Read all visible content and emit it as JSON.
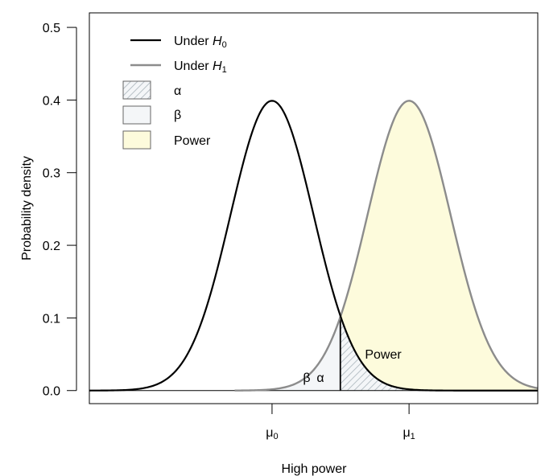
{
  "chart_data": {
    "type": "area",
    "title": "",
    "xlabel": "High power",
    "ylabel": "Probability density",
    "xlim": [
      -4.4,
      6.4
    ],
    "ylim": [
      -0.018,
      0.52
    ],
    "yticks": [
      0.0,
      0.1,
      0.2,
      0.3,
      0.4,
      0.5
    ],
    "y_tick_labels": [
      "0.0",
      "0.1",
      "0.2",
      "0.3",
      "0.4",
      "0.5"
    ],
    "x_tick_labels": [
      "μ0",
      "μ1"
    ],
    "mu0": 0,
    "mu1": 3.3,
    "sd": 1,
    "critical_value": 1.645,
    "grid": false,
    "legend_position": "top-left",
    "series": [
      {
        "name": "Under H0",
        "mean": 0,
        "sd": 1,
        "color": "#000000"
      },
      {
        "name": "Under H1",
        "mean": 3.3,
        "sd": 1,
        "color": "#8c8c8c"
      }
    ],
    "regions": [
      {
        "name": "α",
        "fill": "hatched"
      },
      {
        "name": "β",
        "fill": "#f4f6f8"
      },
      {
        "name": "Power",
        "fill": "#fdfbdc"
      }
    ],
    "annotations": {
      "power": "Power",
      "beta": "β",
      "alpha": "α"
    }
  },
  "legend": {
    "h0_prefix": "Under ",
    "h0_var": "H",
    "h0_sub": "0",
    "h1_prefix": "Under ",
    "h1_var": "H",
    "h1_sub": "1",
    "alpha": "α",
    "beta": "β",
    "power": "Power"
  },
  "colors": {
    "h0_line": "#000000",
    "h1_line": "#8c8c8c",
    "power_fill": "#fdfbdc",
    "beta_fill": "#f4f6f8",
    "hatch": "#a9b4bb"
  }
}
